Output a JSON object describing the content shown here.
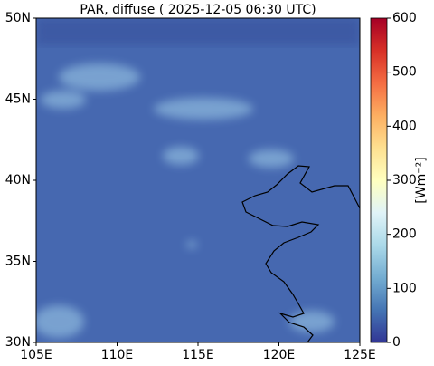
{
  "chart_data": {
    "type": "map",
    "title": "PAR, diffuse ( 2025-12-05 06:30 UTC)",
    "xlim": [
      105,
      125
    ],
    "xticks": [
      {
        "value": 105,
        "label": "105E"
      },
      {
        "value": 110,
        "label": "110E"
      },
      {
        "value": 115,
        "label": "115E"
      },
      {
        "value": 120,
        "label": "120E"
      },
      {
        "value": 125,
        "label": "125E"
      }
    ],
    "ylim": [
      30,
      50
    ],
    "yticks": [
      {
        "value": 30,
        "label": "30N"
      },
      {
        "value": 35,
        "label": "35N"
      },
      {
        "value": 40,
        "label": "40N"
      },
      {
        "value": 45,
        "label": "45N"
      },
      {
        "value": 50,
        "label": "50N"
      }
    ],
    "colorbar": {
      "label": "[Wm⁻²]",
      "lim": [
        0,
        600
      ],
      "ticks": [
        0,
        100,
        200,
        300,
        400,
        500,
        600
      ]
    }
  }
}
